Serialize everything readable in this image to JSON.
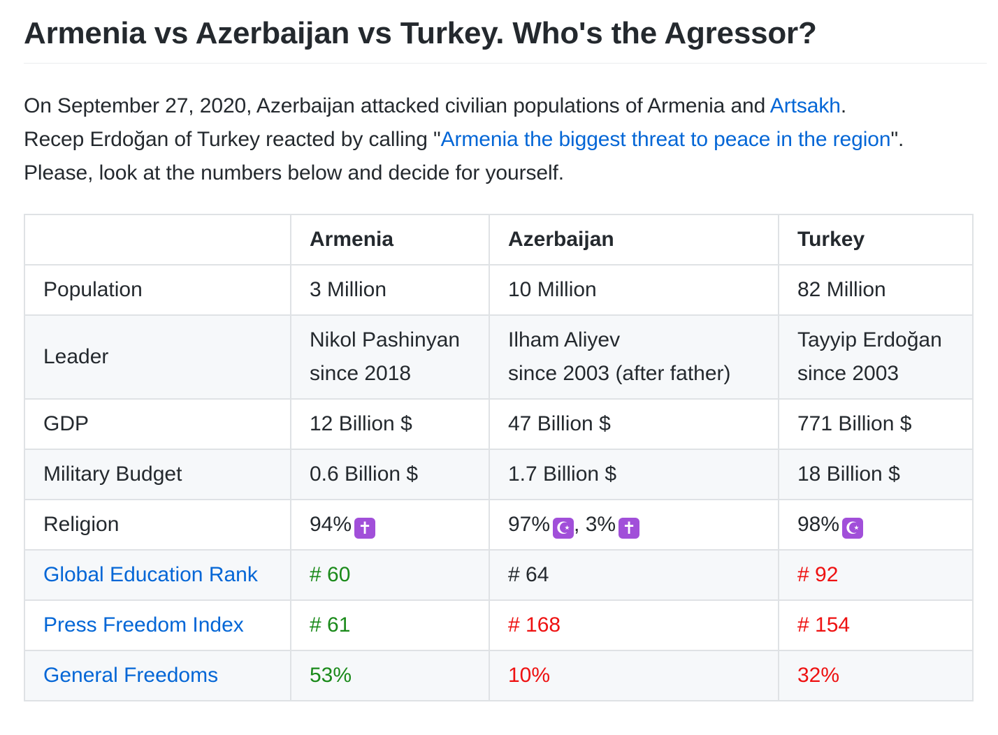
{
  "title": "Armenia vs Azerbaijan vs Turkey. Who's the Agressor?",
  "intro": {
    "line1_prefix": "On September 27, 2020, Azerbaijan attacked civilian populations of Armenia and ",
    "line1_link": "Artsakh",
    "line1_suffix": ".",
    "line2_prefix": "Recep Erdoğan of Turkey reacted by calling \"",
    "line2_link": "Armenia the biggest threat to peace in the region",
    "line2_suffix": "\".",
    "line3": "Please, look at the numbers below and decide for yourself."
  },
  "table": {
    "headers": [
      "",
      "Armenia",
      "Azerbaijan",
      "Turkey"
    ],
    "population": {
      "label": "Population",
      "armenia": "3 Million",
      "azerbaijan": "10 Million",
      "turkey": "82 Million"
    },
    "leader": {
      "label": "Leader",
      "armenia_name": "Nikol Pashinyan",
      "armenia_since": "since 2018",
      "azerbaijan_name": "Ilham Aliyev",
      "azerbaijan_since": "since 2003 (after father)",
      "turkey_name": "Tayyip Erdoğan",
      "turkey_since": "since 2003"
    },
    "gdp": {
      "label": "GDP",
      "armenia": "12 Billion $",
      "azerbaijan": "47 Billion $",
      "turkey": "771 Billion $"
    },
    "military": {
      "label": "Military Budget",
      "armenia": "0.6 Billion $",
      "azerbaijan": "1.7 Billion $",
      "turkey": "18 Billion $"
    },
    "religion": {
      "label": "Religion",
      "armenia_pct": "94%",
      "armenia_icon": "latin-cross-icon",
      "azerbaijan_pct1": "97%",
      "azerbaijan_icon1": "star-and-crescent-icon",
      "azerbaijan_sep": ",",
      "azerbaijan_pct2": "3%",
      "azerbaijan_icon2": "latin-cross-icon",
      "turkey_pct": "98%",
      "turkey_icon": "star-and-crescent-icon",
      "cross_glyph": "✝",
      "crescent_glyph": "☪",
      "icon_color": "#a14fd9"
    },
    "education": {
      "label": "Global Education Rank",
      "armenia": "# 60",
      "azerbaijan": "# 64",
      "turkey": "# 92"
    },
    "press": {
      "label": "Press Freedom Index",
      "armenia": "# 61",
      "azerbaijan": "# 168",
      "turkey": "# 154"
    },
    "freedoms": {
      "label": "General Freedoms",
      "armenia": "53%",
      "azerbaijan": "10%",
      "turkey": "32%"
    }
  },
  "colors": {
    "link": "#0366d6",
    "good": "#1a8a1a",
    "bad": "#ee1111",
    "alt_row": "#f6f8fa",
    "border": "#dfe2e5"
  }
}
